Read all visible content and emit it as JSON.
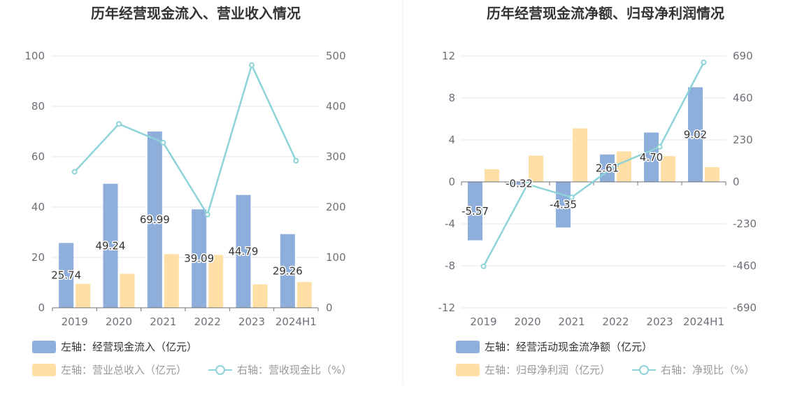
{
  "colors": {
    "bar1": "#8eaedb",
    "bar2": "#ffdfa5",
    "line": "#8dd3d8",
    "grid": "#e0e6f1",
    "axis": "#6e7079",
    "divider": "#eeeeee"
  },
  "chart_data": [
    {
      "type": "bar",
      "title": "历年经营现金流入、营业收入情况",
      "categories": [
        "2019",
        "2020",
        "2021",
        "2022",
        "2023",
        "2024H1"
      ],
      "yticks_left": [
        "0",
        "20",
        "40",
        "60",
        "80",
        "100"
      ],
      "yticks_right": [
        "0",
        "100",
        "200",
        "300",
        "400",
        "500"
      ],
      "ylim_left": [
        0,
        100
      ],
      "ylim_right": [
        0,
        500
      ],
      "series": [
        {
          "name": "左轴：经营现金流入（亿元）",
          "kind": "bar",
          "axis": "left",
          "values": [
            25.74,
            49.24,
            69.99,
            39.09,
            44.79,
            29.26
          ],
          "labels": [
            "25.74",
            "49.24",
            "69.99",
            "39.09",
            "44.79",
            "29.26"
          ]
        },
        {
          "name": "左轴：营业总收入（亿元）",
          "kind": "bar",
          "axis": "left",
          "values": [
            9.5,
            13.5,
            21.3,
            21.0,
            9.3,
            10.2
          ]
        },
        {
          "name": "右轴：营收现金比（%）",
          "kind": "line",
          "axis": "right",
          "values": [
            270,
            365,
            328,
            185,
            482,
            292
          ]
        }
      ]
    },
    {
      "type": "bar",
      "title": "历年经营现金流净额、归母净利润情况",
      "categories": [
        "2019",
        "2020",
        "2021",
        "2022",
        "2023",
        "2024H1"
      ],
      "yticks_left": [
        "-12",
        "-8",
        "-4",
        "0",
        "4",
        "8",
        "12"
      ],
      "yticks_right": [
        "-690",
        "-460",
        "-230",
        "0",
        "230",
        "460",
        "690"
      ],
      "ylim_left": [
        -12,
        12
      ],
      "ylim_right": [
        -690,
        690
      ],
      "series": [
        {
          "name": "左轴：经营活动现金流净额（亿元）",
          "kind": "bar",
          "axis": "left",
          "values": [
            -5.57,
            -0.32,
            -4.35,
            2.61,
            4.7,
            9.02
          ],
          "labels": [
            "-5.57",
            "-0.32",
            "-4.35",
            "2.61",
            "4.70",
            "9.02"
          ]
        },
        {
          "name": "左轴：归母净利润（亿元）",
          "kind": "bar",
          "axis": "left",
          "values": [
            1.2,
            2.5,
            5.1,
            2.9,
            2.45,
            1.4
          ]
        },
        {
          "name": "右轴：净现比（%）",
          "kind": "line",
          "axis": "right",
          "values": [
            -463,
            -13,
            -85,
            90,
            192,
            655
          ]
        }
      ]
    }
  ]
}
